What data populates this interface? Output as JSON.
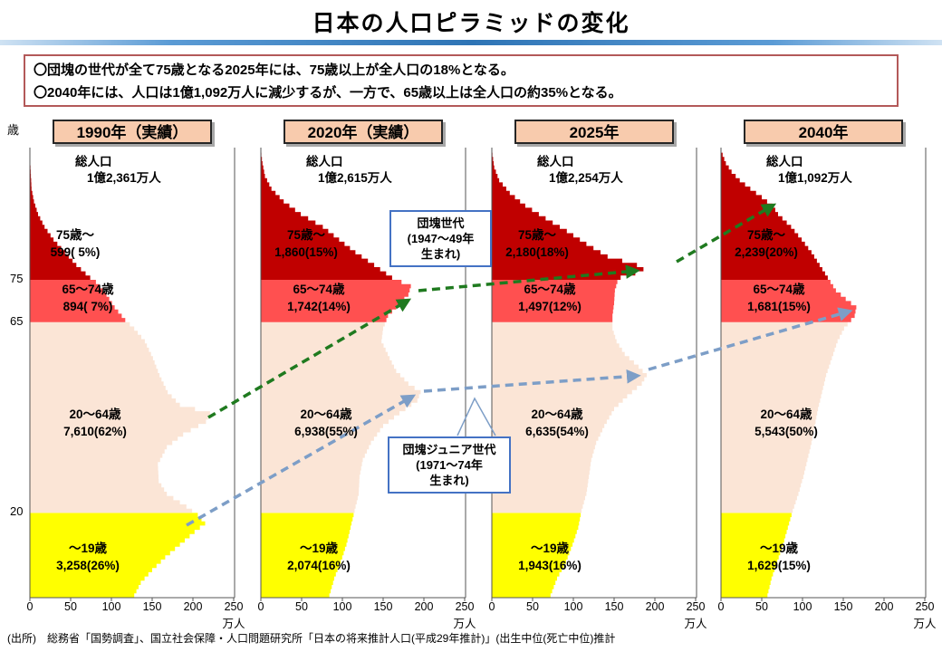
{
  "title": "日本の人口ピラミッドの変化",
  "intro": {
    "line1": "〇団塊の世代が全て75歳となる2025年には、75歳以上が全人口の18%となる。",
    "line2": "〇2040年には、人口は1億1,092万人に減少するが、一方で、65歳以上は全人口の約35%となる。"
  },
  "annotations": {
    "dankai": {
      "lines": [
        "団塊世代",
        "(1947〜49年",
        "生まれ)"
      ]
    },
    "junior": {
      "lines": [
        "団塊ジュニア世代",
        "(1971〜74年",
        "生まれ)"
      ]
    }
  },
  "footer": "(出所)　総務省「国勢調査」、国立社会保障・人口問題研究所「日本の将来推計人口(平成29年推計)」(出生中位(死亡中位)推計",
  "colors": {
    "band_0_19": "#ffff00",
    "band_20_64": "#fbe5d6",
    "band_65_74": "#ff5050",
    "band_75plus": "#c00000",
    "arrow_dankai": "#1f7a1f",
    "arrow_junior": "#7d9ec7",
    "header_fill": "#f8cbad",
    "accent_blue": "#2e74b5",
    "intro_border": "#b35959",
    "annotation_border": "#4472c4",
    "frame": "#555555"
  },
  "chart_data": {
    "type": "bar",
    "subtype": "population_pyramid_timeseries",
    "title": "日本の人口ピラミッドの変化",
    "x_axis": {
      "ticks": [
        0,
        50,
        100,
        150,
        200,
        250
      ],
      "unit": "万人",
      "max": 250
    },
    "y_axis": {
      "unit": "歳",
      "marks": [
        "75",
        "65",
        "20"
      ],
      "range": [
        0,
        106
      ]
    },
    "age_bands": [
      {
        "key": "75plus",
        "label": "75歳〜",
        "color": "#c00000"
      },
      {
        "key": "65_74",
        "label": "65〜74歳",
        "color": "#ff5050"
      },
      {
        "key": "20_64",
        "label": "20〜64歳",
        "color": "#fbe5d6"
      },
      {
        "key": "0_19",
        "label": "〜19歳",
        "color": "#ffff00"
      }
    ],
    "panels": [
      {
        "header": "1990年（実績）",
        "total_label": "総人口",
        "total": "1億2,361万人",
        "groups": [
          {
            "label": "75歳〜",
            "text": "599( 5%)",
            "value": 599,
            "pct": 5
          },
          {
            "label": "65〜74歳",
            "text": "894( 7%)",
            "value": 894,
            "pct": 7
          },
          {
            "label": "20〜64歳",
            "text": "7,610(62%)",
            "value": 7610,
            "pct": 62
          },
          {
            "label": "〜19歳",
            "text": "3,258(26%)",
            "value": 3258,
            "pct": 26
          }
        ],
        "profile_age_vs_10k": [
          [
            0,
            128
          ],
          [
            3,
            136
          ],
          [
            6,
            150
          ],
          [
            9,
            166
          ],
          [
            12,
            184
          ],
          [
            15,
            202
          ],
          [
            17,
            215
          ],
          [
            19,
            206
          ],
          [
            21,
            192
          ],
          [
            24,
            168
          ],
          [
            27,
            158
          ],
          [
            31,
            157
          ],
          [
            35,
            168
          ],
          [
            38,
            188
          ],
          [
            41,
            216
          ],
          [
            43,
            221
          ],
          [
            45,
            184
          ],
          [
            48,
            169
          ],
          [
            52,
            159
          ],
          [
            56,
            151
          ],
          [
            60,
            141
          ],
          [
            63,
            128
          ],
          [
            65,
            117
          ],
          [
            68,
            104
          ],
          [
            71,
            94
          ],
          [
            74,
            81
          ],
          [
            75,
            74
          ],
          [
            78,
            57
          ],
          [
            81,
            43
          ],
          [
            84,
            29
          ],
          [
            87,
            18
          ],
          [
            90,
            10
          ],
          [
            93,
            5
          ],
          [
            96,
            2
          ],
          [
            100,
            1
          ],
          [
            104,
            0
          ]
        ]
      },
      {
        "header": "2020年（実績）",
        "total_label": "総人口",
        "total": "1億2,615万人",
        "groups": [
          {
            "label": "75歳〜",
            "text": "1,860(15%)",
            "value": 1860,
            "pct": 15
          },
          {
            "label": "65〜74歳",
            "text": "1,742(14%)",
            "value": 1742,
            "pct": 14
          },
          {
            "label": "20〜64歳",
            "text": "6,938(55%)",
            "value": 6938,
            "pct": 55
          },
          {
            "label": "〜19歳",
            "text": "2,074(16%)",
            "value": 2074,
            "pct": 16
          }
        ],
        "profile_age_vs_10k": [
          [
            0,
            84
          ],
          [
            4,
            90
          ],
          [
            8,
            98
          ],
          [
            12,
            105
          ],
          [
            16,
            110
          ],
          [
            20,
            115
          ],
          [
            24,
            120
          ],
          [
            28,
            121
          ],
          [
            32,
            125
          ],
          [
            36,
            135
          ],
          [
            40,
            150
          ],
          [
            43,
            170
          ],
          [
            46,
            192
          ],
          [
            48,
            196
          ],
          [
            50,
            181
          ],
          [
            53,
            166
          ],
          [
            56,
            158
          ],
          [
            60,
            148
          ],
          [
            63,
            150
          ],
          [
            66,
            156
          ],
          [
            69,
            171
          ],
          [
            71,
            181
          ],
          [
            73,
            184
          ],
          [
            75,
            161
          ],
          [
            78,
            139
          ],
          [
            81,
            116
          ],
          [
            84,
            96
          ],
          [
            87,
            76
          ],
          [
            90,
            49
          ],
          [
            93,
            28
          ],
          [
            96,
            13
          ],
          [
            99,
            5
          ],
          [
            102,
            2
          ],
          [
            105,
            0
          ]
        ]
      },
      {
        "header": "2025年",
        "total_label": "総人口",
        "total": "1億2,254万人",
        "groups": [
          {
            "label": "75歳〜",
            "text": "2,180(18%)",
            "value": 2180,
            "pct": 18
          },
          {
            "label": "65〜74歳",
            "text": "1,497(12%)",
            "value": 1497,
            "pct": 12
          },
          {
            "label": "20〜64歳",
            "text": "6,635(54%)",
            "value": 6635,
            "pct": 54
          },
          {
            "label": "〜19歳",
            "text": "1,943(16%)",
            "value": 1943,
            "pct": 16
          }
        ],
        "profile_age_vs_10k": [
          [
            0,
            72
          ],
          [
            4,
            80
          ],
          [
            8,
            91
          ],
          [
            12,
            99
          ],
          [
            16,
            106
          ],
          [
            20,
            110
          ],
          [
            24,
            116
          ],
          [
            28,
            119
          ],
          [
            32,
            122
          ],
          [
            36,
            128
          ],
          [
            40,
            138
          ],
          [
            44,
            150
          ],
          [
            47,
            166
          ],
          [
            50,
            184
          ],
          [
            52,
            190
          ],
          [
            54,
            180
          ],
          [
            57,
            163
          ],
          [
            60,
            153
          ],
          [
            63,
            148
          ],
          [
            66,
            148
          ],
          [
            69,
            150
          ],
          [
            72,
            151
          ],
          [
            74,
            154
          ],
          [
            75,
            158
          ],
          [
            76,
            176
          ],
          [
            77,
            186
          ],
          [
            78,
            178
          ],
          [
            80,
            142
          ],
          [
            83,
            116
          ],
          [
            86,
            92
          ],
          [
            89,
            66
          ],
          [
            92,
            41
          ],
          [
            95,
            22
          ],
          [
            98,
            9
          ],
          [
            101,
            3
          ],
          [
            105,
            0
          ]
        ]
      },
      {
        "header": "2040年",
        "total_label": "総人口",
        "total": "1億1,092万人",
        "groups": [
          {
            "label": "75歳〜",
            "text": "2,239(20%)",
            "value": 2239,
            "pct": 20
          },
          {
            "label": "65〜74歳",
            "text": "1,681(15%)",
            "value": 1681,
            "pct": 15
          },
          {
            "label": "20〜64歳",
            "text": "5,543(50%)",
            "value": 5543,
            "pct": 50
          },
          {
            "label": "〜19歳",
            "text": "1,629(15%)",
            "value": 1629,
            "pct": 15
          }
        ],
        "profile_age_vs_10k": [
          [
            0,
            57
          ],
          [
            4,
            62
          ],
          [
            8,
            69
          ],
          [
            12,
            76
          ],
          [
            16,
            82
          ],
          [
            20,
            88
          ],
          [
            24,
            95
          ],
          [
            28,
            101
          ],
          [
            32,
            106
          ],
          [
            36,
            111
          ],
          [
            40,
            115
          ],
          [
            44,
            119
          ],
          [
            48,
            124
          ],
          [
            52,
            129
          ],
          [
            56,
            136
          ],
          [
            60,
            143
          ],
          [
            63,
            151
          ],
          [
            66,
            164
          ],
          [
            68,
            166
          ],
          [
            70,
            153
          ],
          [
            72,
            141
          ],
          [
            75,
            131
          ],
          [
            78,
            121
          ],
          [
            81,
            111
          ],
          [
            84,
            99
          ],
          [
            87,
            86
          ],
          [
            90,
            70
          ],
          [
            92,
            63
          ],
          [
            94,
            50
          ],
          [
            96,
            36
          ],
          [
            98,
            23
          ],
          [
            100,
            13
          ],
          [
            102,
            6
          ],
          [
            105,
            0
          ]
        ]
      }
    ]
  }
}
